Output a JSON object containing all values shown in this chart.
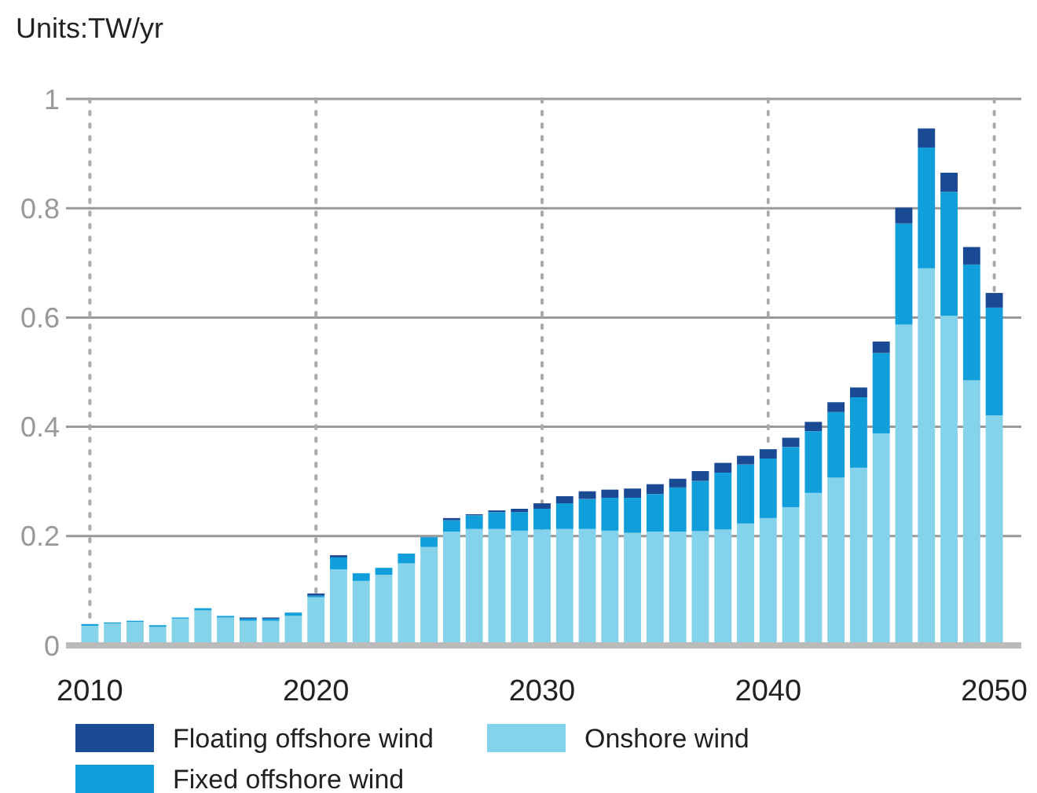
{
  "chart_data": {
    "type": "bar",
    "stacked": true,
    "ylabel": "Units:TW/yr",
    "categories": [
      "2010",
      null,
      null,
      null,
      null,
      null,
      null,
      null,
      null,
      null,
      "2020",
      null,
      null,
      null,
      null,
      null,
      null,
      null,
      null,
      null,
      "2030",
      null,
      null,
      null,
      null,
      null,
      null,
      null,
      null,
      null,
      "2040",
      null,
      null,
      null,
      null,
      null,
      null,
      null,
      null,
      null,
      "2050"
    ],
    "series": [
      {
        "name": "Onshore wind",
        "color": "#85d3eb",
        "values": [
          0.036,
          0.04,
          0.043,
          0.034,
          0.049,
          0.064,
          0.051,
          0.045,
          0.045,
          0.054,
          0.088,
          0.139,
          0.118,
          0.129,
          0.15,
          0.18,
          0.208,
          0.213,
          0.213,
          0.21,
          0.212,
          0.213,
          0.213,
          0.21,
          0.206,
          0.208,
          0.208,
          0.209,
          0.212,
          0.223,
          0.233,
          0.253,
          0.279,
          0.307,
          0.325,
          0.388,
          0.587,
          0.69,
          0.603,
          0.485,
          0.421
        ]
      },
      {
        "name": "Fixed offshore wind",
        "color": "#119fdc",
        "values": [
          0.003,
          0.002,
          0.002,
          0.003,
          0.002,
          0.004,
          0.003,
          0.004,
          0.004,
          0.006,
          0.003,
          0.022,
          0.014,
          0.013,
          0.018,
          0.018,
          0.021,
          0.025,
          0.031,
          0.034,
          0.038,
          0.047,
          0.055,
          0.06,
          0.064,
          0.069,
          0.081,
          0.092,
          0.104,
          0.108,
          0.109,
          0.11,
          0.113,
          0.12,
          0.129,
          0.147,
          0.185,
          0.221,
          0.227,
          0.212,
          0.197
        ]
      },
      {
        "name": "Floating offshore wind",
        "color": "#1a4a93",
        "values": [
          0,
          0,
          0,
          0,
          0,
          0,
          0,
          0.002,
          0.002,
          0,
          0.004,
          0.004,
          0,
          0,
          0,
          0,
          0.004,
          0.002,
          0.003,
          0.006,
          0.01,
          0.013,
          0.014,
          0.015,
          0.017,
          0.018,
          0.016,
          0.018,
          0.018,
          0.016,
          0.017,
          0.017,
          0.017,
          0.018,
          0.018,
          0.021,
          0.029,
          0.035,
          0.035,
          0.032,
          0.027
        ]
      }
    ],
    "ylim": [
      0,
      1
    ],
    "yticks": [
      0,
      0.2,
      0.4,
      0.6,
      0.8,
      1
    ],
    "grid": true,
    "legend": "bottom"
  }
}
